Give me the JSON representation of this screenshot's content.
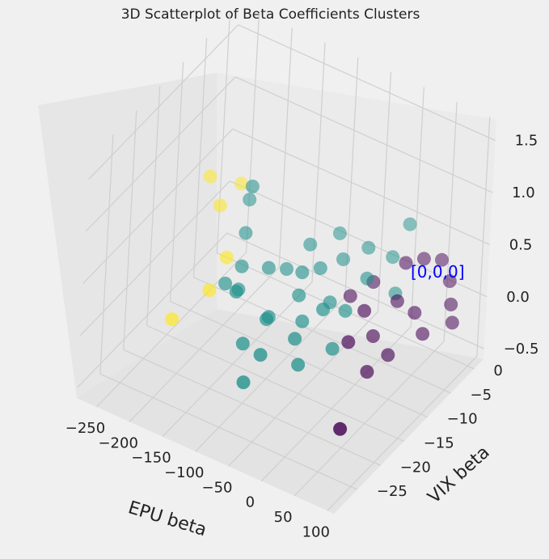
{
  "chart_data": {
    "type": "scatter",
    "title": "3D Scatterplot of Beta Coefficients Clusters",
    "xlabel": "EPU beta",
    "ylabel": "VIX beta",
    "zlabel": "",
    "xlim": [
      -280,
      110
    ],
    "ylim": [
      -30,
      2
    ],
    "zlim": [
      -0.6,
      1.7
    ],
    "x_ticks": [
      "−250",
      "−200",
      "−150",
      "−100",
      "−50",
      "0",
      "50",
      "100"
    ],
    "y_ticks": [
      "0",
      "−5",
      "−10",
      "−15",
      "−20",
      "−25"
    ],
    "z_ticks": [
      "1.5",
      "1.0",
      "0.5",
      "0.0",
      "−0.5"
    ],
    "grid": true,
    "annotation": {
      "text": "[0,0,0]",
      "color": "#0000ff"
    },
    "colors": {
      "cluster_0": "#440154",
      "cluster_1": "#21918c",
      "cluster_2": "#fde725"
    },
    "series": [
      {
        "cluster": 0,
        "points": [
          {
            "x": 20,
            "y": -3,
            "z": 0.3
          },
          {
            "x": 40,
            "y": -2,
            "z": 0.35
          },
          {
            "x": 60,
            "y": -1,
            "z": 0.35
          },
          {
            "x": 80,
            "y": -2,
            "z": 0.25
          },
          {
            "x": 90,
            "y": -3,
            "z": 0.1
          },
          {
            "x": 100,
            "y": -4,
            "z": 0.0
          },
          {
            "x": 30,
            "y": -6,
            "z": 0.1
          },
          {
            "x": 50,
            "y": -5,
            "z": 0.0
          },
          {
            "x": 70,
            "y": -6,
            "z": -0.1
          },
          {
            "x": 10,
            "y": -8,
            "z": -0.2
          },
          {
            "x": 40,
            "y": -9,
            "z": -0.25
          },
          {
            "x": -20,
            "y": -4,
            "z": 0.05
          },
          {
            "x": -5,
            "y": -8,
            "z": 0.0
          },
          {
            "x": 0,
            "y": -12,
            "z": -0.1
          },
          {
            "x": 30,
            "y": -12,
            "z": -0.3
          },
          {
            "x": -40,
            "y": -6,
            "z": -0.05
          },
          {
            "x": 60,
            "y": -22,
            "z": -0.3
          }
        ]
      },
      {
        "cluster": 1,
        "points": [
          {
            "x": -200,
            "y": -5,
            "z": 0.5
          },
          {
            "x": -210,
            "y": -4,
            "z": 0.3
          },
          {
            "x": -200,
            "y": -6,
            "z": 0.1
          },
          {
            "x": -190,
            "y": -8,
            "z": -0.1
          },
          {
            "x": -200,
            "y": -10,
            "z": -0.2
          },
          {
            "x": -180,
            "y": -10,
            "z": -0.2
          },
          {
            "x": -170,
            "y": -12,
            "z": -0.1
          },
          {
            "x": -150,
            "y": -8,
            "z": 0.0
          },
          {
            "x": -130,
            "y": -7,
            "z": 0.0
          },
          {
            "x": -110,
            "y": -5,
            "z": 0.2
          },
          {
            "x": -100,
            "y": -8,
            "z": 0.1
          },
          {
            "x": -90,
            "y": -10,
            "z": 0.0
          },
          {
            "x": -80,
            "y": -7,
            "z": 0.15
          },
          {
            "x": -120,
            "y": -12,
            "z": -0.2
          },
          {
            "x": -110,
            "y": -14,
            "z": -0.1
          },
          {
            "x": -70,
            "y": -12,
            "z": -0.1
          },
          {
            "x": -60,
            "y": -5,
            "z": 0.2
          },
          {
            "x": -50,
            "y": -9,
            "z": 0.0
          },
          {
            "x": -60,
            "y": -15,
            "z": -0.1
          },
          {
            "x": -130,
            "y": -16,
            "z": -0.3
          },
          {
            "x": -90,
            "y": -18,
            "z": -0.2
          },
          {
            "x": -40,
            "y": -12,
            "z": 0.1
          },
          {
            "x": -30,
            "y": -4,
            "z": 0.35
          },
          {
            "x": 0,
            "y": -3,
            "z": 0.3
          },
          {
            "x": -10,
            "y": -7,
            "z": 0.25
          },
          {
            "x": -20,
            "y": -10,
            "z": 0.05
          },
          {
            "x": 10,
            "y": -1,
            "z": 0.55
          },
          {
            "x": 20,
            "y": -5,
            "z": 0.1
          },
          {
            "x": -40,
            "y": -17,
            "z": -0.2
          },
          {
            "x": -80,
            "y": -3,
            "z": 0.3
          },
          {
            "x": -10,
            "y": -14,
            "z": -0.1
          },
          {
            "x": -100,
            "y": -20,
            "z": -0.4
          }
        ]
      },
      {
        "cluster": 2,
        "points": [
          {
            "x": -270,
            "y": -4,
            "z": 0.35
          },
          {
            "x": -240,
            "y": -6,
            "z": 0.25
          },
          {
            "x": -230,
            "y": -3,
            "z": 0.35
          },
          {
            "x": -250,
            "y": -14,
            "z": -0.5
          },
          {
            "x": -200,
            "y": -10,
            "z": 0.05
          },
          {
            "x": -210,
            "y": -12,
            "z": -0.2
          }
        ]
      }
    ]
  }
}
